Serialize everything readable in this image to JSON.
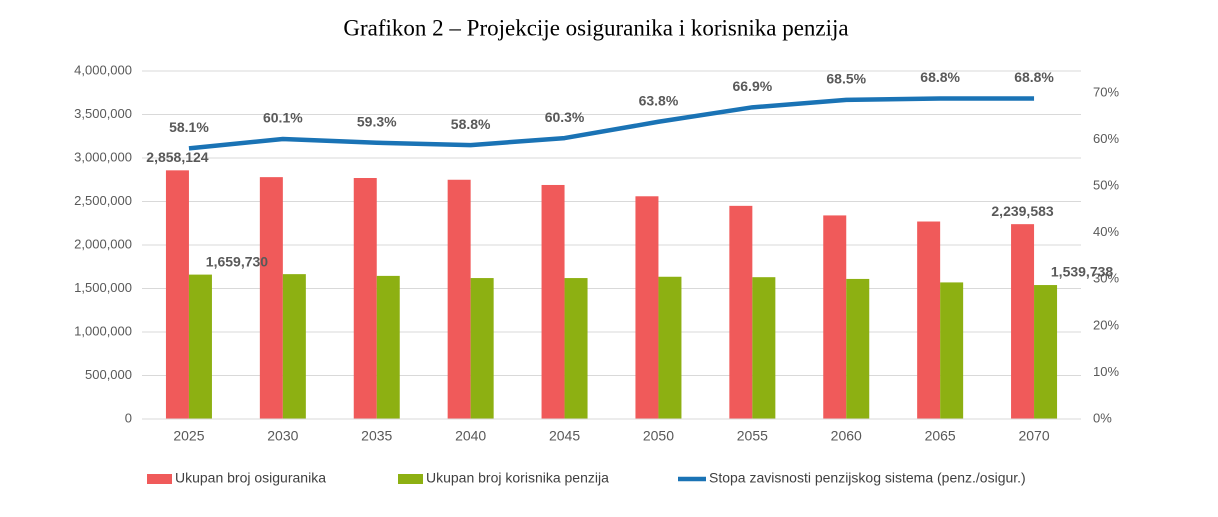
{
  "chart_data": {
    "type": "bar-line",
    "title": "Grafikon 2 – Projekcije osiguranika i korisnika penzija",
    "categories": [
      "2025",
      "2030",
      "2035",
      "2040",
      "2045",
      "2050",
      "2055",
      "2060",
      "2065",
      "2070"
    ],
    "series": [
      {
        "name": "Ukupan broj osiguranika",
        "type": "bar",
        "color": "#f05a5a",
        "values": [
          2858124,
          2780000,
          2770000,
          2750000,
          2690000,
          2560000,
          2450000,
          2340000,
          2270000,
          2239583
        ],
        "value_labels": [
          "2,858,124",
          null,
          null,
          null,
          null,
          null,
          null,
          null,
          null,
          "2,239,583"
        ],
        "label_color": "#f05a5a"
      },
      {
        "name": "Ukupan broj korisnika penzija",
        "type": "bar",
        "color": "#8db012",
        "values": [
          1659730,
          1665000,
          1645000,
          1620000,
          1620000,
          1635000,
          1630000,
          1610000,
          1570000,
          1539738
        ],
        "value_labels": [
          "1,659,730",
          null,
          null,
          null,
          null,
          null,
          null,
          null,
          null,
          "1,539,738"
        ],
        "label_color": "#6f8c0a"
      },
      {
        "name": "Stopa zavisnosti penzijskog sistema (penz./osigur.)",
        "type": "line",
        "axis": "y2",
        "color": "#1a73b5",
        "values": [
          58.1,
          60.1,
          59.3,
          58.8,
          60.3,
          63.8,
          66.9,
          68.5,
          68.8,
          68.8
        ],
        "value_labels": [
          "58.1%",
          "60.1%",
          "59.3%",
          "58.8%",
          "60.3%",
          "63.8%",
          "66.9%",
          "68.5%",
          "68.8%",
          "68.8%"
        ],
        "label_color": "#1a73b5"
      }
    ],
    "ylim": [
      0,
      4000000
    ],
    "yticks": [
      0,
      {
        "value": 500000,
        "label": "500,000"
      },
      {
        "value": 1000000,
        "label": "1,000,000"
      },
      {
        "value": 1500000,
        "label": "1,500,000"
      },
      {
        "value": 2000000,
        "label": "2,000,000"
      },
      {
        "value": 2500000,
        "label": "2,500,000"
      },
      {
        "value": 3000000,
        "label": "3,000,000"
      },
      {
        "value": 3500000,
        "label": "3,500,000"
      },
      {
        "value": 4000000,
        "label": "4,000,000"
      }
    ],
    "y2lim": [
      0,
      74.7
    ],
    "y2ticks": [
      {
        "value": 0,
        "label": "0%"
      },
      {
        "value": 10,
        "label": "10%"
      },
      {
        "value": 20,
        "label": "20%"
      },
      {
        "value": 30,
        "label": "30%"
      },
      {
        "value": 40,
        "label": "40%"
      },
      {
        "value": 50,
        "label": "50%"
      },
      {
        "value": 60,
        "label": "60%"
      },
      {
        "value": 70,
        "label": "70%"
      }
    ],
    "grid": true,
    "legend": "bottom"
  }
}
